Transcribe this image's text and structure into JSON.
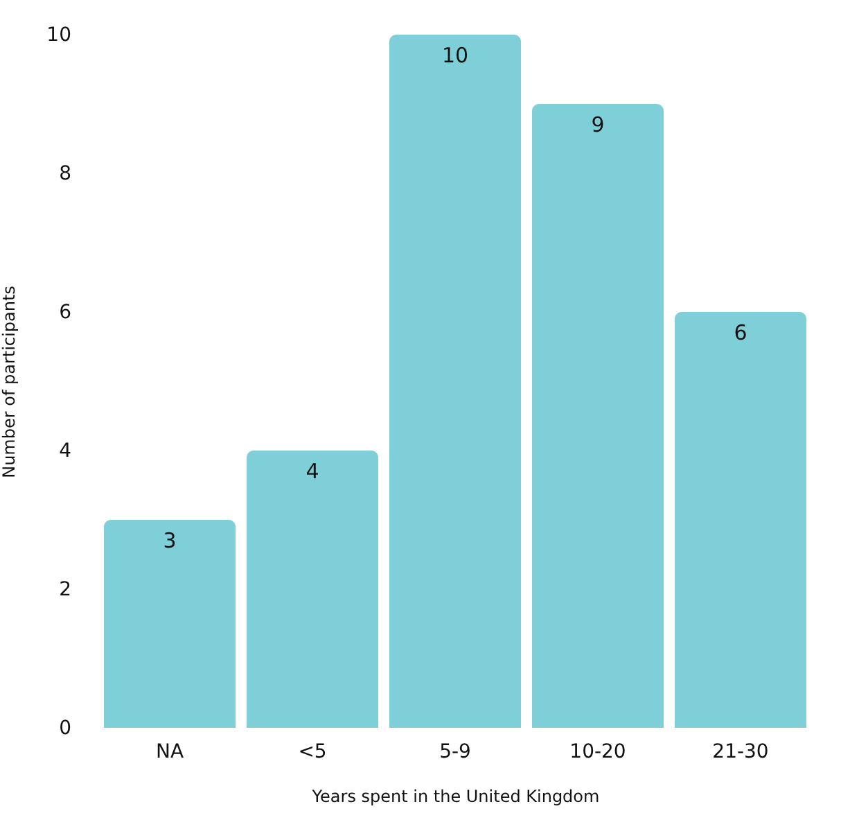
{
  "chart_data": {
    "type": "bar",
    "xlabel": "Years spent in the United Kingdom",
    "ylabel": "Number of participants",
    "categories": [
      "NA",
      "<5",
      "5-9",
      "10-20",
      "21-30"
    ],
    "values": [
      3,
      4,
      10,
      9,
      6
    ],
    "color": "#7ecfd8",
    "ylim": [
      0,
      10
    ],
    "yticks": [
      0,
      2,
      4,
      6,
      8,
      10
    ],
    "grid": false,
    "data_labels": true
  }
}
